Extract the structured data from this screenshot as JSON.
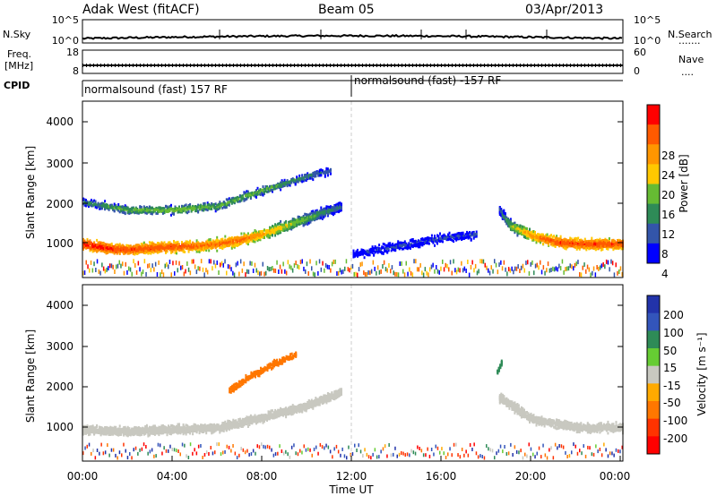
{
  "header": {
    "station": "Adak West (fitACF)",
    "beam": "Beam 05",
    "date": "03/Apr/2013"
  },
  "noise_panel": {
    "left_label": "N.Sky",
    "right_label": "N.Search",
    "right_dots": ".......",
    "left_ticks": [
      "10^5",
      "10^0"
    ],
    "right_ticks": [
      "10^5",
      "10^0"
    ]
  },
  "freq_panel": {
    "left_label_line1": "Freq.",
    "left_label_line2": "[MHz]",
    "right_label": "Nave",
    "right_dots": "....",
    "left_ticks": [
      "18",
      "8"
    ],
    "right_ticks": [
      "60",
      "0"
    ]
  },
  "cpid": {
    "label": "CPID",
    "segments": [
      "normalsound (fast) 157 RF",
      "normalsound (fast) -157 RF"
    ]
  },
  "x_axis": {
    "title": "Time UT",
    "ticks": [
      "00:00",
      "04:00",
      "08:00",
      "12:00",
      "16:00",
      "20:00",
      "00:00"
    ]
  },
  "power_panel": {
    "ylabel": "Slant Range [km]",
    "yticks": [
      "4000",
      "3000",
      "2000",
      "1000"
    ],
    "colorbar_label": "Power [dB]",
    "colorbar_ticks": [
      "28",
      "24",
      "20",
      "16",
      "12",
      "8",
      "4"
    ],
    "colorbar_colors": [
      "#ff0000",
      "#ff5a00",
      "#ff9600",
      "#ffc800",
      "#66bb33",
      "#2e8b57",
      "#3355aa",
      "#0000ff"
    ]
  },
  "velocity_panel": {
    "ylabel": "Slant Range [km]",
    "yticks": [
      "4000",
      "3000",
      "2000",
      "1000"
    ],
    "colorbar_label": "Velocity [m s⁻¹]",
    "colorbar_ticks": [
      "200",
      "100",
      "50",
      "15",
      "-15",
      "-50",
      "-100",
      "-200"
    ],
    "colorbar_colors": [
      "#2233aa",
      "#3355bb",
      "#2e8b57",
      "#66cc33",
      "#c8c8c0",
      "#ffaa00",
      "#ff7700",
      "#ff3300",
      "#ff0000"
    ]
  },
  "chart_data": [
    {
      "type": "heatmap",
      "title": "Power",
      "xlabel": "Time UT",
      "ylabel": "Slant Range [km]",
      "xlim": [
        0,
        24
      ],
      "ylim": [
        180,
        4600
      ],
      "colorbar": {
        "label": "Power [dB]",
        "range": [
          0,
          32
        ]
      },
      "main_scatter_band": {
        "time_h": [
          0,
          1,
          2,
          3,
          4,
          5,
          6,
          7,
          8,
          9,
          10,
          11,
          11.5
        ],
        "range_km_center": [
          1050,
          950,
          900,
          950,
          980,
          1000,
          1050,
          1150,
          1300,
          1500,
          1700,
          1900,
          2000
        ],
        "power_dB_peak": [
          30,
          30,
          28,
          28,
          28,
          26,
          26,
          26,
          22,
          18,
          14,
          10,
          8
        ]
      },
      "main_scatter_band_late": {
        "time_h": [
          18.5,
          19,
          20,
          21,
          22,
          23,
          24
        ],
        "range_km_center": [
          1900,
          1500,
          1250,
          1100,
          1050,
          1050,
          1050
        ],
        "power_dB_peak": [
          8,
          16,
          24,
          28,
          28,
          28,
          28
        ]
      },
      "upper_band": {
        "time_h": [
          0,
          2,
          4,
          6,
          8,
          10,
          11
        ],
        "range_km_center": [
          2100,
          1900,
          1900,
          2000,
          2400,
          2750,
          2900
        ],
        "power_dB_peak": [
          10,
          14,
          16,
          14,
          14,
          10,
          8
        ]
      },
      "noon_sector": {
        "time_h": [
          12,
          14,
          16,
          17.5
        ],
        "range_km_center": [
          800,
          1000,
          1200,
          1300
        ],
        "power_dB_peak": [
          4,
          6,
          6,
          6
        ]
      }
    },
    {
      "type": "heatmap",
      "title": "Velocity",
      "xlabel": "Time UT",
      "ylabel": "Slant Range [km]",
      "xlim": [
        0,
        24
      ],
      "ylim": [
        180,
        4600
      ],
      "colorbar": {
        "label": "Velocity [m s⁻¹]",
        "range": [
          -200,
          200
        ]
      },
      "ground_scatter_band": {
        "time_h": [
          0,
          2,
          4,
          6,
          8,
          10,
          11.5
        ],
        "range_km_center": [
          1000,
          950,
          1000,
          1050,
          1300,
          1600,
          1950
        ],
        "velocity": [
          0,
          0,
          0,
          0,
          0,
          0,
          0
        ]
      },
      "ground_scatter_band_late": {
        "time_h": [
          18.5,
          20,
          22,
          24
        ],
        "range_km_center": [
          1800,
          1250,
          1050,
          1050
        ],
        "velocity": [
          0,
          0,
          0,
          0
        ]
      },
      "negative_velocity_echo": {
        "time_h": [
          6.5,
          7.5,
          8.5,
          9.5
        ],
        "range_km_center": [
          2000,
          2350,
          2650,
          2900
        ],
        "velocity": [
          -60,
          -70,
          -60,
          -50
        ]
      },
      "positive_velocity_echo": {
        "time_h": [
          18.4,
          18.6
        ],
        "range_km_center": [
          2450,
          2700
        ],
        "velocity": [
          60,
          60
        ]
      }
    }
  ]
}
